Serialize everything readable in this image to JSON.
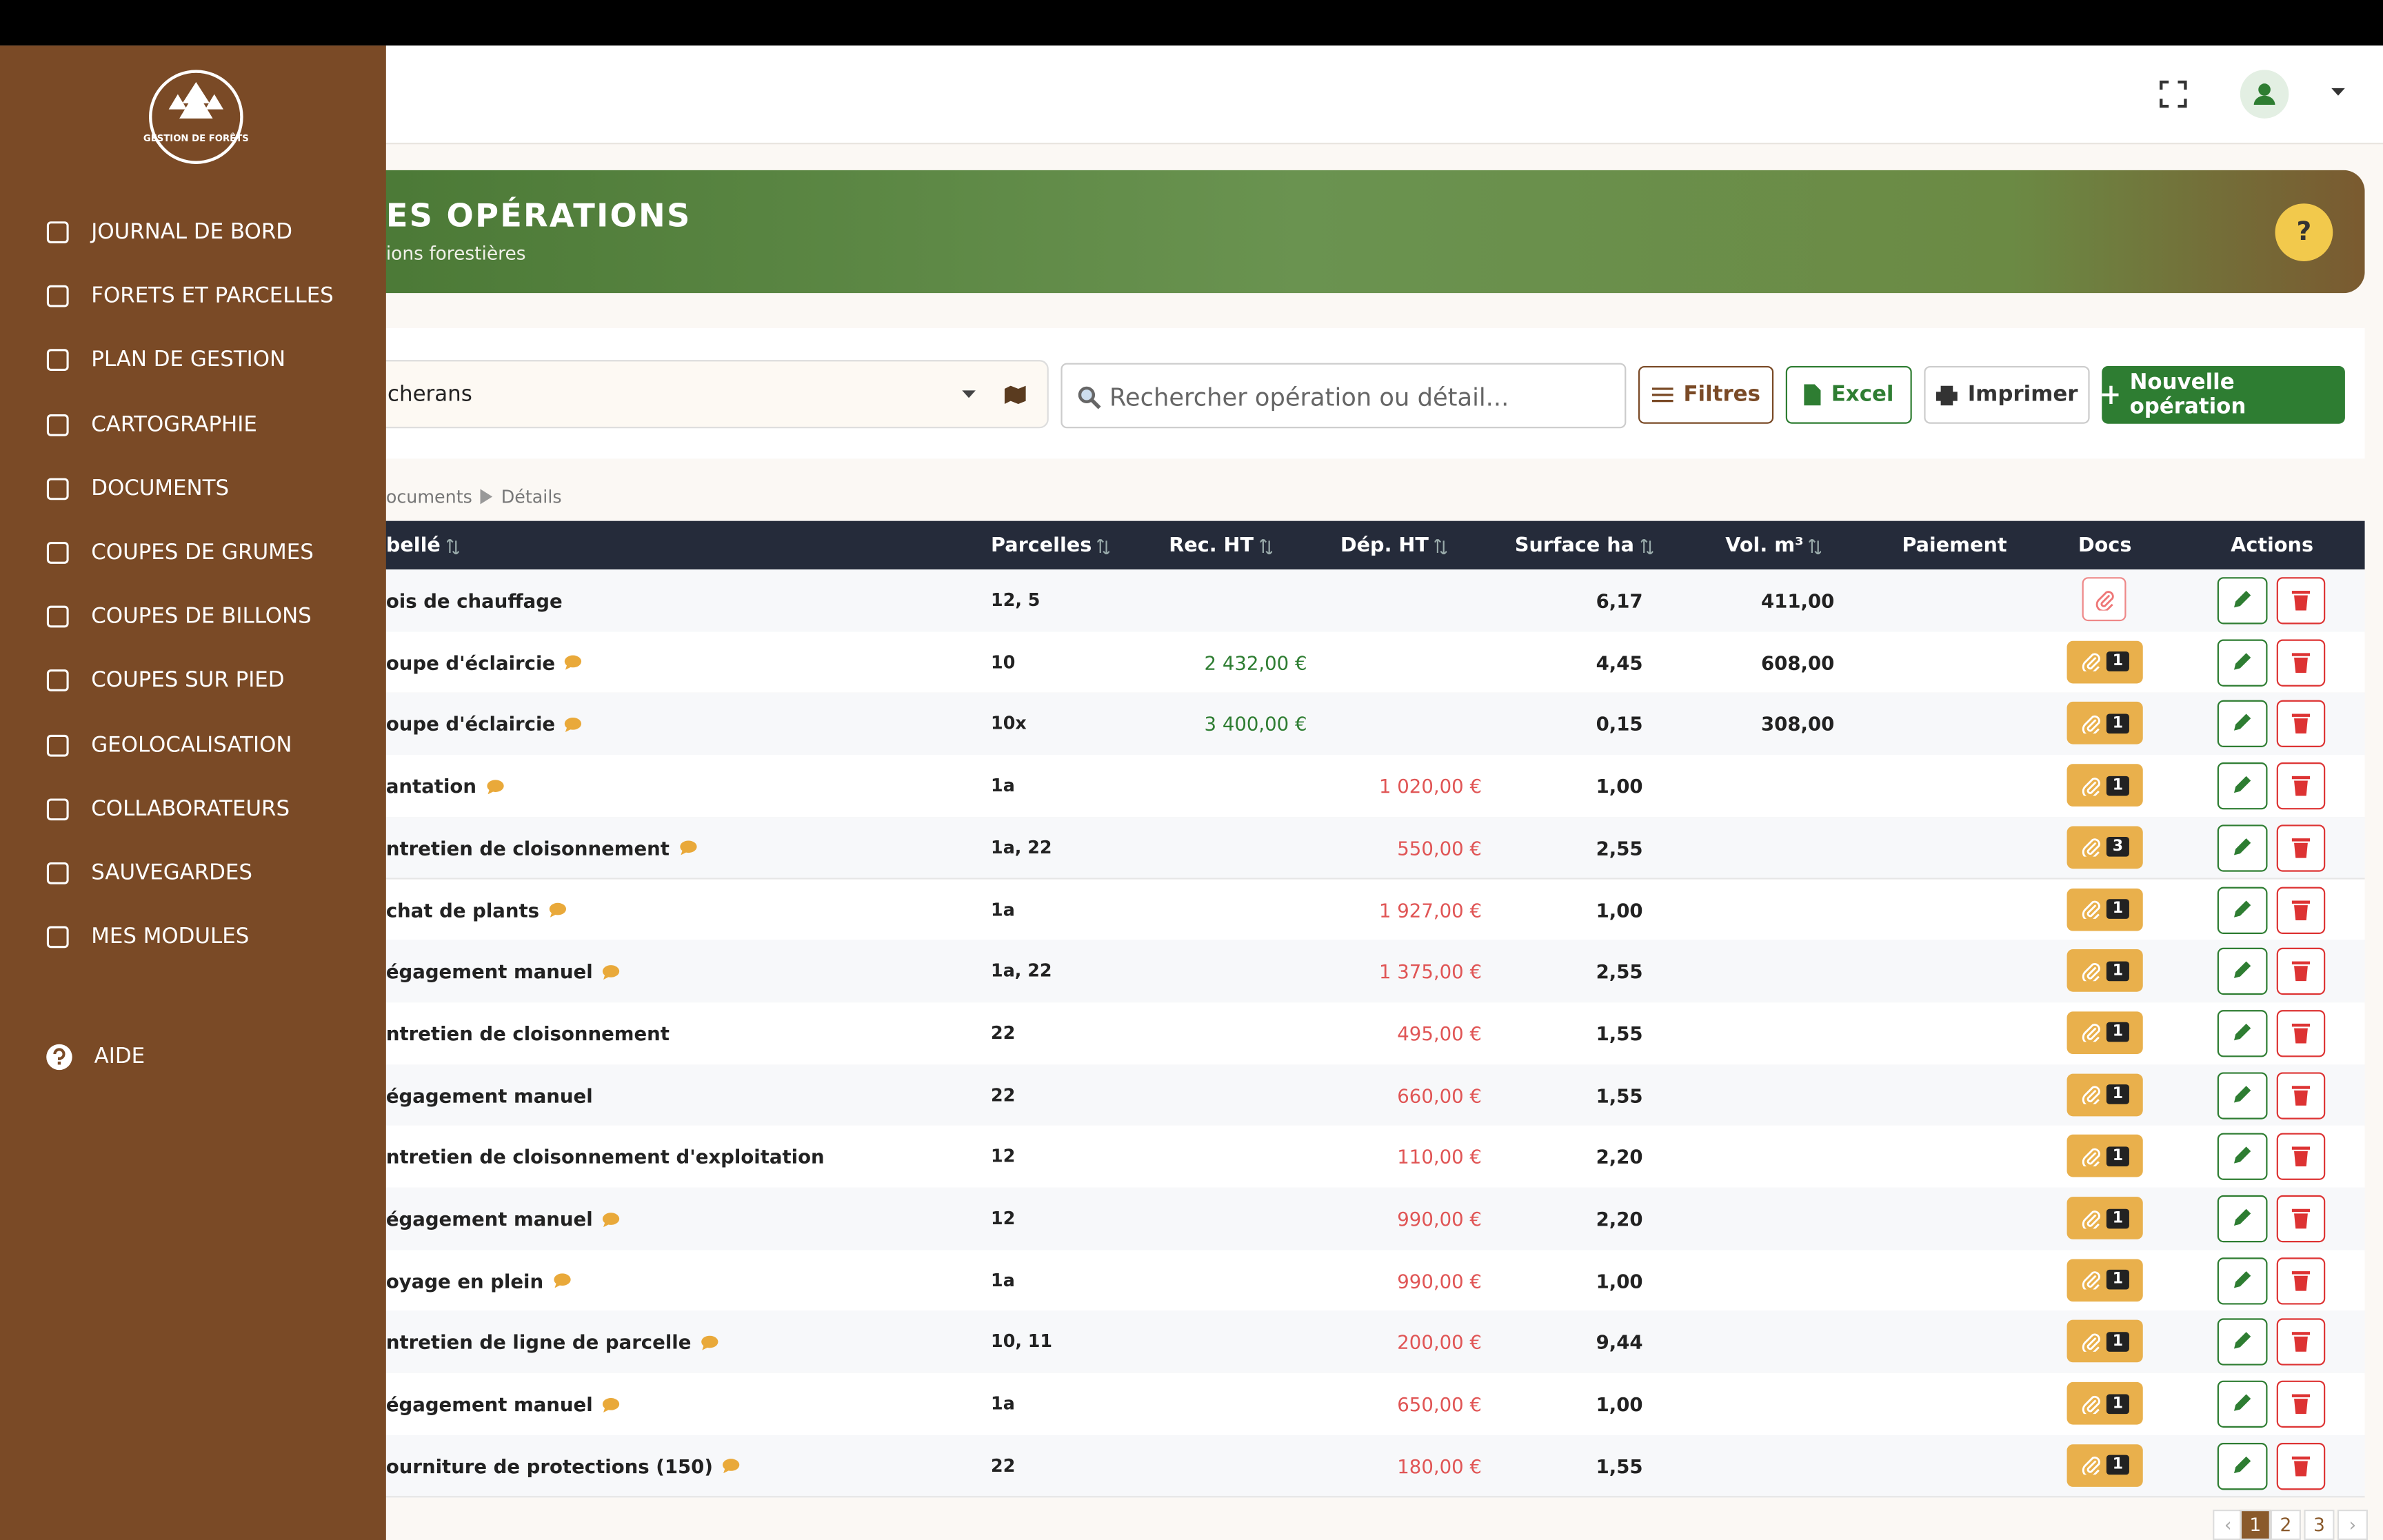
{
  "sidebar": {
    "logo_text": "GESTION DE FORÊTS",
    "menu": [
      "JOURNAL DE BORD",
      "FORETS ET PARCELLES",
      "PLAN DE GESTION",
      "CARTOGRAPHIE",
      "DOCUMENTS",
      "COUPES DE GRUMES",
      "COUPES DE BILLONS",
      "COUPES SUR PIED",
      "GEOLOCALISATION",
      "COLLABORATEURS",
      "SAUVEGARDES",
      "MES MODULES"
    ],
    "help": "AIDE"
  },
  "banner": {
    "title": "ES OPÉRATIONS",
    "subtitle": "ions forestières",
    "help_label": "?"
  },
  "toolbar": {
    "select_value": "cherans",
    "search_placeholder": "Rechercher opération ou détail...",
    "buttons": [
      "Filtres",
      "Excel",
      "Imprimer",
      "Nouvelle opération"
    ]
  },
  "breadcrumb": [
    "ocuments",
    "Détails"
  ],
  "table": {
    "columns": [
      "bellé",
      "Parcelles",
      "Rec. HT",
      "Dép. HT",
      "Surface ha",
      "Vol. m³",
      "Paiement",
      "Docs",
      "Actions"
    ],
    "rows": [
      {
        "cells": [
          "ois de chauffage",
          "12, 5",
          "",
          "",
          "6,17",
          "411,00"
        ],
        "comment": false,
        "docs": null
      },
      {
        "cells": [
          "oupe d'éclaircie",
          "10",
          "2 432,00 €",
          "",
          "4,45",
          "608,00"
        ],
        "comment": true,
        "docs": 1
      },
      {
        "cells": [
          "oupe d'éclaircie",
          "10x",
          "3 400,00 €",
          "",
          "0,15",
          "308,00"
        ],
        "comment": true,
        "docs": 1
      },
      {
        "cells": [
          "antation",
          "1a",
          "",
          "1 020,00 €",
          "1,00",
          ""
        ],
        "comment": true,
        "docs": 1
      },
      {
        "cells": [
          "ntretien de cloisonnement",
          "1a, 22",
          "",
          "550,00 €",
          "2,55",
          ""
        ],
        "comment": true,
        "docs": 3
      },
      {
        "cells": [
          "chat de plants",
          "1a",
          "",
          "1 927,00 €",
          "1,00",
          ""
        ],
        "comment": true,
        "docs": 1
      },
      {
        "cells": [
          "égagement manuel",
          "1a, 22",
          "",
          "1 375,00 €",
          "2,55",
          ""
        ],
        "comment": true,
        "docs": 1
      },
      {
        "cells": [
          "ntretien de cloisonnement",
          "22",
          "",
          "495,00 €",
          "1,55",
          ""
        ],
        "comment": false,
        "docs": 1
      },
      {
        "cells": [
          "égagement manuel",
          "22",
          "",
          "660,00 €",
          "1,55",
          ""
        ],
        "comment": false,
        "docs": 1
      },
      {
        "cells": [
          "ntretien de cloisonnement d'exploitation",
          "12",
          "",
          "110,00 €",
          "2,20",
          ""
        ],
        "comment": false,
        "docs": 1
      },
      {
        "cells": [
          "égagement manuel",
          "12",
          "",
          "990,00 €",
          "2,20",
          ""
        ],
        "comment": true,
        "docs": 1
      },
      {
        "cells": [
          "oyage en plein",
          "1a",
          "",
          "990,00 €",
          "1,00",
          ""
        ],
        "comment": true,
        "docs": 1
      },
      {
        "cells": [
          "ntretien de ligne de parcelle",
          "10, 11",
          "",
          "200,00 €",
          "9,44",
          ""
        ],
        "comment": true,
        "docs": 1
      },
      {
        "cells": [
          "égagement manuel",
          "1a",
          "",
          "650,00 €",
          "1,00",
          ""
        ],
        "comment": true,
        "docs": 1
      },
      {
        "cells": [
          "ourniture de protections (150)",
          "22",
          "",
          "180,00 €",
          "1,55",
          ""
        ],
        "comment": true,
        "docs": 1
      }
    ]
  },
  "pagination": [
    "‹",
    "1",
    "2",
    "3",
    "›"
  ]
}
